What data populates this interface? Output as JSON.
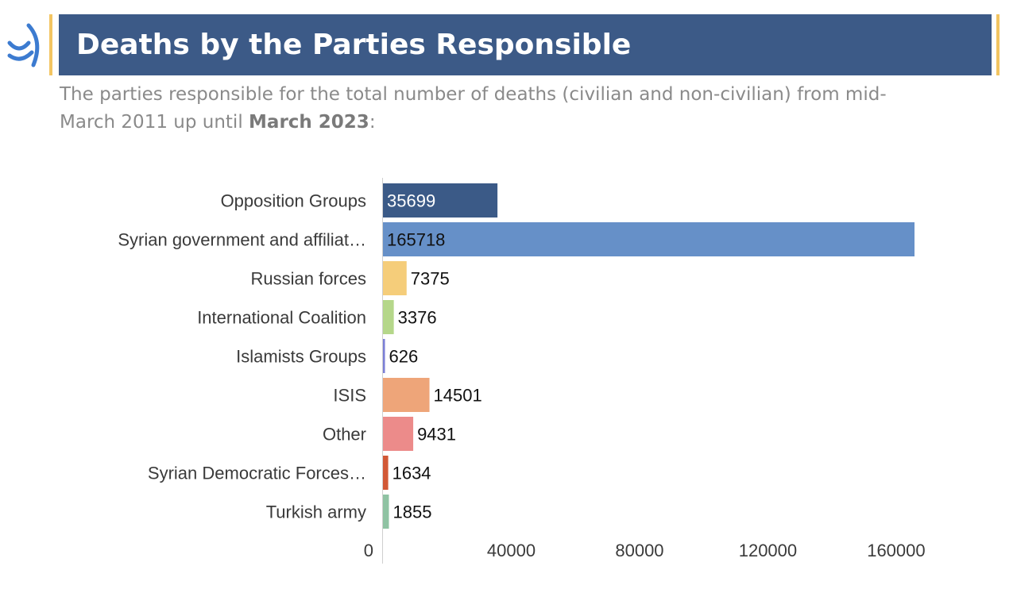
{
  "header": {
    "title": "Deaths by the Parties Responsible",
    "subtitle_part1": "The parties responsible for the total number of deaths (civilian and non-civilian) from mid-March 2011 up until ",
    "subtitle_bold": "March 2023",
    "subtitle_end": ":",
    "colors": {
      "band": "#3c5a87",
      "accent": "#f3c562",
      "logo": "#3c7bd0"
    }
  },
  "chart_data": {
    "type": "bar",
    "orientation": "horizontal",
    "categories": [
      "Opposition Groups",
      "Syrian government and affiliat…",
      "Russian forces",
      "International Coalition",
      "Islamists Groups",
      "ISIS",
      "Other",
      "Syrian Democratic Forces…",
      "Turkish army"
    ],
    "values": [
      35699,
      165718,
      7375,
      3376,
      626,
      14501,
      9431,
      1634,
      1855
    ],
    "value_labels": [
      "35699",
      "165718",
      "7375",
      "3376",
      "626",
      "14501",
      "9431",
      "1634",
      "1855"
    ],
    "colors": [
      "#3b5a87",
      "#6690c8",
      "#f5cd7a",
      "#b5d78a",
      "#7b7fd6",
      "#eea579",
      "#ec8b8a",
      "#d25836",
      "#8fc3a3"
    ],
    "x_ticks": [
      0,
      40000,
      80000,
      120000,
      160000
    ],
    "x_tick_labels": [
      "0",
      "40000",
      "80000",
      "120000",
      "160000"
    ],
    "xlim": [
      0,
      165718
    ],
    "grid": false,
    "legend": "none",
    "title": "",
    "xlabel": "",
    "ylabel": ""
  }
}
